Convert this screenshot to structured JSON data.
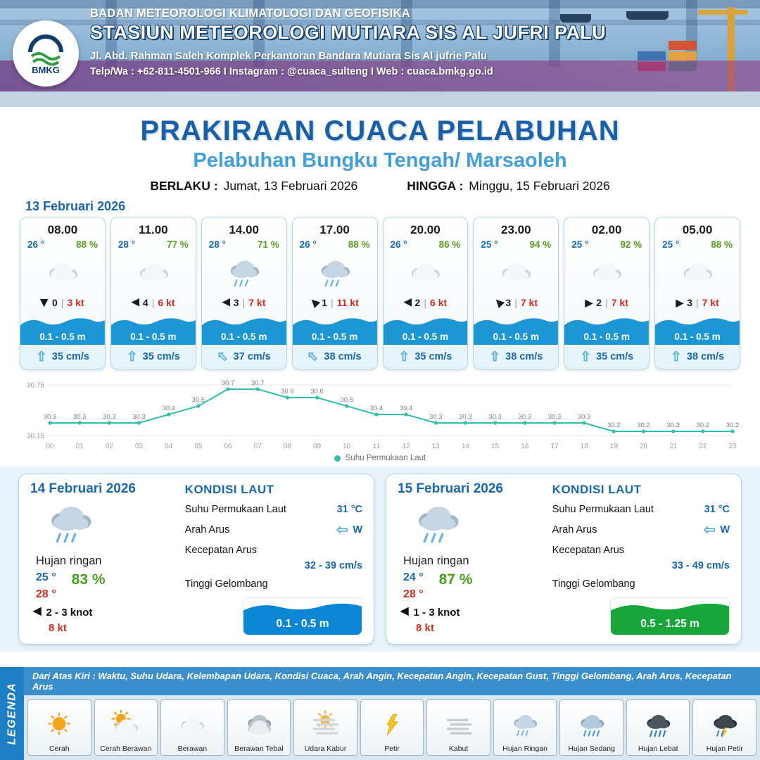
{
  "header": {
    "org": "BADAN METEOROLOGI KLIMATOLOGI DAN GEOFISIKA",
    "station": "STASIUN METEOROLOGI MUTIARA SIS AL JUFRI PALU",
    "address": "Jl. Abd. Rahman Saleh Komplek Perkantoran Bandara Mutiara Sis Al jufrie Palu",
    "contact": "Telp/Wa : +62-811-4501-966  I  Instagram : @cuaca_sulteng  I  Web : cuaca.bmkg.go.id",
    "logo": "BMKG"
  },
  "title": {
    "main": "PRAKIRAAN CUACA PELABUHAN",
    "sub": "Pelabuhan Bungku Tengah/ Marsaoleh",
    "valid_from_label": "BERLAKU :",
    "valid_from": "Jumat, 13 Februari 2026",
    "valid_to_label": "HINGGA :",
    "valid_to": "Minggu, 15 Februari 2026"
  },
  "forecast_date": "13 Februari 2026",
  "hourly": [
    {
      "time": "08.00",
      "temp": "26 °",
      "rh": "88 %",
      "icon": "berawan",
      "wind_dir": "S",
      "wind_gust": "0",
      "wind_speed": "3 kt",
      "wave": "0.1 - 0.5 m",
      "current_dir": "N",
      "current_speed": "35 cm/s"
    },
    {
      "time": "11.00",
      "temp": "28 °",
      "rh": "77 %",
      "icon": "berawan",
      "wind_dir": "W",
      "wind_gust": "4",
      "wind_speed": "6 kt",
      "wave": "0.1 - 0.5 m",
      "current_dir": "N",
      "current_speed": "35 cm/s"
    },
    {
      "time": "14.00",
      "temp": "28 °",
      "rh": "71 %",
      "icon": "hujan-ringan",
      "wind_dir": "W",
      "wind_gust": "3",
      "wind_speed": "7 kt",
      "wave": "0.1 - 0.5 m",
      "current_dir": "NW",
      "current_speed": "37 cm/s"
    },
    {
      "time": "17.00",
      "temp": "26 °",
      "rh": "88 %",
      "icon": "hujan-ringan",
      "wind_dir": "NW",
      "wind_gust": "1",
      "wind_speed": "11 kt",
      "wave": "0.1 - 0.5 m",
      "current_dir": "NW",
      "current_speed": "38 cm/s"
    },
    {
      "time": "20.00",
      "temp": "26 °",
      "rh": "86 %",
      "icon": "berawan",
      "wind_dir": "W",
      "wind_gust": "2",
      "wind_speed": "6 kt",
      "wave": "0.1 - 0.5 m",
      "current_dir": "N",
      "current_speed": "35 cm/s"
    },
    {
      "time": "23.00",
      "temp": "25 °",
      "rh": "94 %",
      "icon": "berawan",
      "wind_dir": "NW",
      "wind_gust": "3",
      "wind_speed": "7 kt",
      "wave": "0.1 - 0.5 m",
      "current_dir": "N",
      "current_speed": "38 cm/s"
    },
    {
      "time": "02.00",
      "temp": "25 °",
      "rh": "92 %",
      "icon": "berawan",
      "wind_dir": "E",
      "wind_gust": "2",
      "wind_speed": "7 kt",
      "wave": "0.1 - 0.5 m",
      "current_dir": "N",
      "current_speed": "35 cm/s"
    },
    {
      "time": "05.00",
      "temp": "25 °",
      "rh": "88 %",
      "icon": "berawan",
      "wind_dir": "E",
      "wind_gust": "3",
      "wind_speed": "7 kt",
      "wave": "0.1 - 0.5 m",
      "current_dir": "N",
      "current_speed": "38 cm/s"
    }
  ],
  "chart_data": {
    "type": "line",
    "title": "Suhu Permukaan Laut",
    "x": [
      "00",
      "01",
      "02",
      "03",
      "04",
      "05",
      "06",
      "07",
      "08",
      "09",
      "10",
      "11",
      "12",
      "13",
      "14",
      "15",
      "16",
      "17",
      "18",
      "19",
      "20",
      "21",
      "22",
      "23"
    ],
    "values": [
      30.3,
      30.3,
      30.3,
      30.3,
      30.4,
      30.5,
      30.7,
      30.7,
      30.6,
      30.6,
      30.5,
      30.4,
      30.4,
      30.3,
      30.3,
      30.3,
      30.3,
      30.3,
      30.3,
      30.2,
      30.2,
      30.2,
      30.2,
      30.2
    ],
    "ylim": [
      30.15,
      30.75
    ],
    "yticks": [
      30.75,
      30.15
    ],
    "legend": "Suhu Permukaan Laut",
    "legend_position": "bottom",
    "grid": true,
    "line_color": "#2fc0ae"
  },
  "daily": [
    {
      "date": "14 Februari 2026",
      "icon": "hujan-ringan",
      "condition": "Hujan ringan",
      "temp_min": "25 °",
      "temp_max": "28 °",
      "rh": "83 %",
      "wind_dir": "W",
      "wind_knot": "2  - 3 knot",
      "gust": "8 kt",
      "sea_title": "KONDISI LAUT",
      "sst_label": "Suhu Permukaan Laut",
      "sst": "31 °C",
      "current_dir_label": "Arah Arus",
      "current_dir": "W",
      "current_speed_label": "Kecepatan Arus",
      "current_speed": "32 - 39 cm/s",
      "wave_label": "Tinggi Gelombang",
      "wave": "0.1 - 0.5 m",
      "wave_color": "#0e86d6"
    },
    {
      "date": "15 Februari 2026",
      "icon": "hujan-ringan",
      "condition": "Hujan ringan",
      "temp_min": "24 °",
      "temp_max": "28 °",
      "rh": "87 %",
      "wind_dir": "W",
      "wind_knot": "1  - 3 knot",
      "gust": "8 kt",
      "sea_title": "KONDISI LAUT",
      "sst_label": "Suhu Permukaan Laut",
      "sst": "31 °C",
      "current_dir_label": "Arah Arus",
      "current_dir": "W",
      "current_speed_label": "Kecepatan Arus",
      "current_speed": "33 - 49 cm/s",
      "wave_label": "Tinggi Gelombang",
      "wave": "0.5 - 1.25 m",
      "wave_color": "#18a53b"
    }
  ],
  "legend": {
    "vertical_label": "LEGENDA",
    "description": "Dari Atas Kiri : Waktu, Suhu Udara, Kelembapan Udara, Kondisi Cuaca, Arah Angin, Kecepatan Angin, Kecepatan Gust, Tinggi Gelombang, Arah Arus, Kecepatan Arus",
    "items": [
      {
        "icon": "cerah",
        "label": "Cerah"
      },
      {
        "icon": "cerah-berawan",
        "label": "Cerah Berawan"
      },
      {
        "icon": "berawan",
        "label": "Berawan"
      },
      {
        "icon": "berawan-tebal",
        "label": "Berawan Tebal"
      },
      {
        "icon": "udara-kabur",
        "label": "Udara Kabur"
      },
      {
        "icon": "petir",
        "label": "Petir"
      },
      {
        "icon": "kabut",
        "label": "Kabut"
      },
      {
        "icon": "hujan-ringan",
        "label": "Hujan Ringan"
      },
      {
        "icon": "hujan-sedang",
        "label": "Hujan Sedang"
      },
      {
        "icon": "hujan-lebat",
        "label": "Hujan Lebat"
      },
      {
        "icon": "hujan-petir",
        "label": "Hujan Petir"
      }
    ]
  }
}
